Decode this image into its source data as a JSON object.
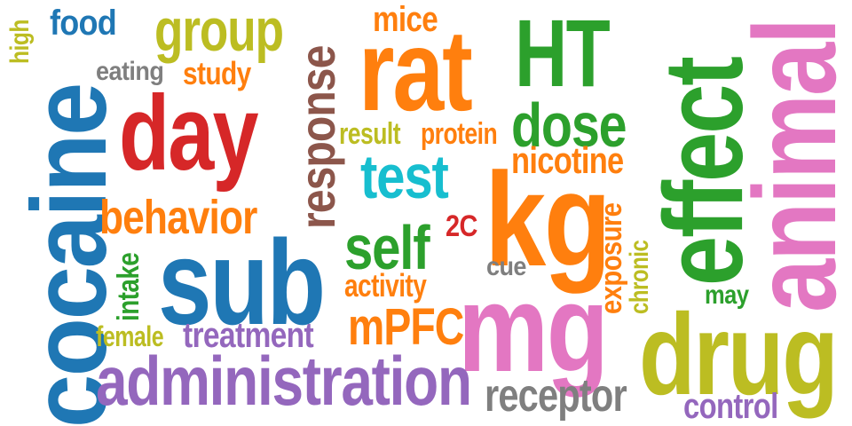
{
  "words": [
    {
      "text": "cocaine",
      "color": "#1f77b4"
    },
    {
      "text": "high",
      "color": "#bcbd22"
    },
    {
      "text": "food",
      "color": "#1f77b4"
    },
    {
      "text": "eating",
      "color": "#7f7f7f"
    },
    {
      "text": "study",
      "color": "#ff7f0e"
    },
    {
      "text": "group",
      "color": "#bcbd22"
    },
    {
      "text": "day",
      "color": "#d62728"
    },
    {
      "text": "response",
      "color": "#8c564b"
    },
    {
      "text": "mice",
      "color": "#ff7f0e"
    },
    {
      "text": "rat",
      "color": "#ff7f0e"
    },
    {
      "text": "HT",
      "color": "#2ca02c"
    },
    {
      "text": "effect",
      "color": "#2ca02c"
    },
    {
      "text": "animal",
      "color": "#e377c2"
    },
    {
      "text": "result",
      "color": "#bcbd22"
    },
    {
      "text": "protein",
      "color": "#ff7f0e"
    },
    {
      "text": "dose",
      "color": "#2ca02c"
    },
    {
      "text": "nicotine",
      "color": "#ff7f0e"
    },
    {
      "text": "test",
      "color": "#17becf"
    },
    {
      "text": "behavior",
      "color": "#ff7f0e"
    },
    {
      "text": "kg",
      "color": "#ff7f0e"
    },
    {
      "text": "2C",
      "color": "#d62728"
    },
    {
      "text": "self",
      "color": "#2ca02c"
    },
    {
      "text": "sub",
      "color": "#1f77b4"
    },
    {
      "text": "intake",
      "color": "#2ca02c"
    },
    {
      "text": "exposure",
      "color": "#ff7f0e"
    },
    {
      "text": "chronic",
      "color": "#bcbd22"
    },
    {
      "text": "cue",
      "color": "#7f7f7f"
    },
    {
      "text": "activity",
      "color": "#ff7f0e"
    },
    {
      "text": "may",
      "color": "#2ca02c"
    },
    {
      "text": "mg",
      "color": "#e377c2"
    },
    {
      "text": "mPFC",
      "color": "#ff7f0e"
    },
    {
      "text": "drug",
      "color": "#bcbd22"
    },
    {
      "text": "female",
      "color": "#bcbd22"
    },
    {
      "text": "treatment",
      "color": "#9467bd"
    },
    {
      "text": "administration",
      "color": "#9467bd"
    },
    {
      "text": "receptor",
      "color": "#7f7f7f"
    },
    {
      "text": "control",
      "color": "#9467bd"
    }
  ]
}
